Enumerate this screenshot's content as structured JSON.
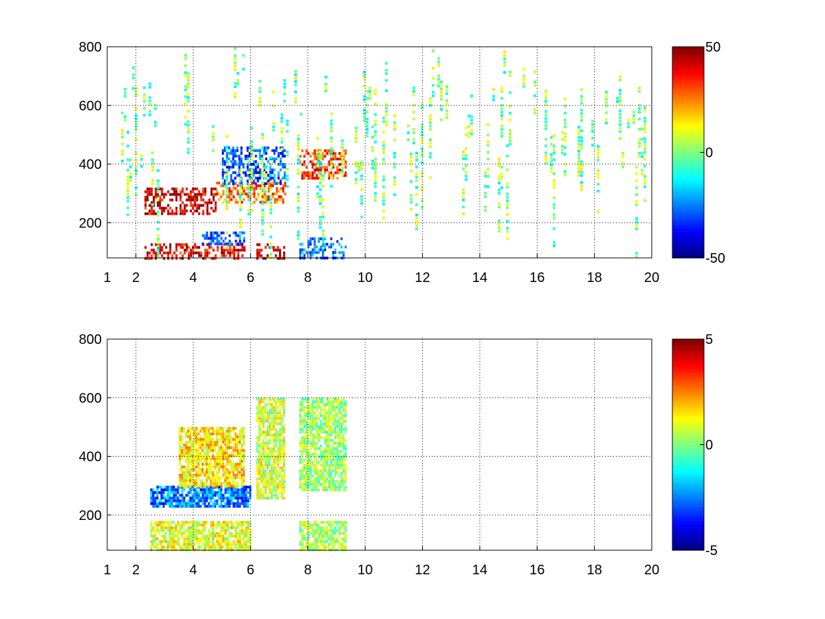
{
  "chart_data": [
    {
      "type": "heatmap",
      "title": "",
      "xlabel": "",
      "ylabel": "",
      "xlim": [
        1,
        20
      ],
      "ylim": [
        80,
        800
      ],
      "xticks": [
        1,
        2,
        4,
        6,
        8,
        10,
        12,
        14,
        16,
        18,
        20
      ],
      "yticks": [
        200,
        400,
        600,
        800
      ],
      "grid": true,
      "colormap": "jet",
      "colorbar": {
        "range": [
          -50,
          50
        ],
        "ticks": [
          -50,
          0,
          50
        ],
        "position": "right"
      },
      "features": [
        {
          "x_range": [
            2.3,
            5.8
          ],
          "y_range": [
            80,
            130
          ],
          "value": 40
        },
        {
          "x_range": [
            2.3,
            4.8
          ],
          "y_range": [
            230,
            320
          ],
          "value": 42
        },
        {
          "x_range": [
            4.8,
            7.2
          ],
          "y_range": [
            270,
            340
          ],
          "value": 28
        },
        {
          "x_range": [
            7.7,
            9.3
          ],
          "y_range": [
            350,
            450
          ],
          "value": 32
        },
        {
          "x_range": [
            6.2,
            7.2
          ],
          "y_range": [
            80,
            130
          ],
          "value": 45
        },
        {
          "x_range": [
            5.0,
            7.2
          ],
          "y_range": [
            330,
            460
          ],
          "value": -30
        },
        {
          "x_range": [
            7.7,
            9.3
          ],
          "y_range": [
            80,
            150
          ],
          "value": -28
        },
        {
          "x_range": [
            4.3,
            5.8
          ],
          "y_range": [
            130,
            170
          ],
          "value": -30
        }
      ],
      "noise": {
        "x_range": [
          1,
          20
        ],
        "value_range": [
          -15,
          15
        ]
      }
    },
    {
      "type": "heatmap",
      "title": "",
      "xlabel": "",
      "ylabel": "",
      "xlim": [
        1,
        20
      ],
      "ylim": [
        80,
        800
      ],
      "xticks": [
        1,
        2,
        4,
        6,
        8,
        10,
        12,
        14,
        16,
        18,
        20
      ],
      "yticks": [
        200,
        400,
        600,
        800
      ],
      "grid": true,
      "colormap": "jet",
      "colorbar": {
        "range": [
          -5,
          5
        ],
        "ticks": [
          -5,
          0,
          5
        ],
        "position": "right"
      },
      "features": [
        {
          "x_range": [
            2.5,
            6.0
          ],
          "y_range": [
            230,
            300
          ],
          "value": -2.5
        },
        {
          "x_range": [
            3.5,
            5.8
          ],
          "y_range": [
            300,
            500
          ],
          "value": 1.5
        },
        {
          "x_range": [
            6.2,
            7.2
          ],
          "y_range": [
            260,
            600
          ],
          "value": 0.8
        },
        {
          "x_range": [
            7.7,
            9.3
          ],
          "y_range": [
            290,
            600
          ],
          "value": 0.3
        },
        {
          "x_range": [
            2.5,
            6.0
          ],
          "y_range": [
            80,
            180
          ],
          "value": 1.0
        },
        {
          "x_range": [
            7.7,
            9.3
          ],
          "y_range": [
            80,
            180
          ],
          "value": 0.5
        }
      ]
    }
  ]
}
